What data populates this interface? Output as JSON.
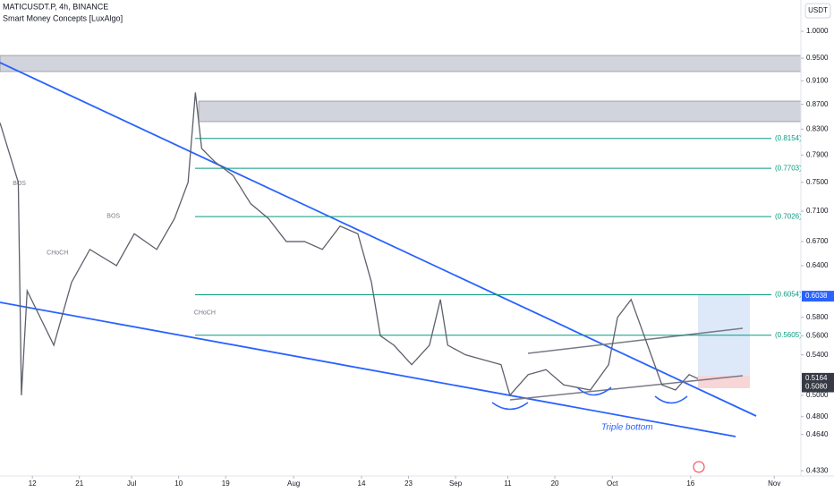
{
  "chart_data": {
    "type": "line",
    "title": "MATICUSDT.P, 4h, BINANCE",
    "subtitle": "Smart Money Concepts [LuxAlgo]",
    "currency": "USDT",
    "log_scale": true,
    "color": "#5d606b",
    "x": [
      -6.2,
      -2.7,
      -2.1,
      -1.0,
      4.1,
      7.5,
      11.0,
      16.1,
      19.5,
      23.8,
      27.2,
      29.8,
      31.2,
      32.4,
      34.9,
      38.4,
      41.8,
      45.2,
      48.6,
      52.1,
      55.5,
      58.9,
      62.3,
      64.9,
      66.6,
      69.2,
      72.6,
      76.0,
      78.1,
      79.5,
      82.9,
      86.3,
      89.7,
      91.4,
      94.9,
      98.3,
      101.7,
      106.8,
      110.3,
      112.0,
      114.6,
      117.1,
      120.5,
      123.1,
      125.7,
      127.4
    ],
    "values": [
      0.84,
      0.75,
      0.5,
      0.61,
      0.55,
      0.62,
      0.66,
      0.64,
      0.68,
      0.66,
      0.7,
      0.75,
      0.89,
      0.8,
      0.78,
      0.76,
      0.72,
      0.7,
      0.67,
      0.67,
      0.66,
      0.69,
      0.68,
      0.62,
      0.56,
      0.55,
      0.53,
      0.55,
      0.6,
      0.55,
      0.54,
      0.535,
      0.53,
      0.5,
      0.52,
      0.525,
      0.51,
      0.505,
      0.53,
      0.58,
      0.6,
      0.56,
      0.51,
      0.505,
      0.52,
      0.516
    ],
    "xlim": [
      -6.2,
      147.1
    ],
    "xticks": [
      {
        "value": 0,
        "label": "12"
      },
      {
        "value": 9,
        "label": "21"
      },
      {
        "value": 19,
        "label": "Jul"
      },
      {
        "value": 28,
        "label": "10"
      },
      {
        "value": 37,
        "label": "19"
      },
      {
        "value": 50,
        "label": "Aug"
      },
      {
        "value": 63,
        "label": "14"
      },
      {
        "value": 72,
        "label": "23"
      },
      {
        "value": 81,
        "label": "Sep"
      },
      {
        "value": 91,
        "label": "11"
      },
      {
        "value": 100,
        "label": "20"
      },
      {
        "value": 111,
        "label": "Oct"
      },
      {
        "value": 126,
        "label": "16"
      },
      {
        "value": 142,
        "label": "Nov"
      }
    ],
    "ylim": [
      0.4288,
      1.0614
    ],
    "yticks": [
      {
        "value": 1,
        "label": "1.0000"
      },
      {
        "value": 0.95,
        "label": "0.9500"
      },
      {
        "value": 0.91,
        "label": "0.9100"
      },
      {
        "value": 0.87,
        "label": "0.8700"
      },
      {
        "value": 0.83,
        "label": "0.8300"
      },
      {
        "value": 0.79,
        "label": "0.7900"
      },
      {
        "value": 0.75,
        "label": "0.7500"
      },
      {
        "value": 0.71,
        "label": "0.7100"
      },
      {
        "value": 0.67,
        "label": "0.6700"
      },
      {
        "value": 0.64,
        "label": "0.6400"
      },
      {
        "value": 0.58,
        "label": "0.5800"
      },
      {
        "value": 0.56,
        "label": "0.5600"
      },
      {
        "value": 0.54,
        "label": "0.5400"
      },
      {
        "value": 0.5,
        "label": "0.5000"
      },
      {
        "value": 0.48,
        "label": "0.4800"
      },
      {
        "value": 0.464,
        "label": "0.4640"
      },
      {
        "value": 0.433,
        "label": "0.4330"
      }
    ],
    "price_tags": [
      {
        "value": 0.6038,
        "color": "#2962ff"
      },
      {
        "value": 0.5164,
        "color": "#363a45"
      },
      {
        "value": 0.508,
        "label": "0.5080",
        "color": "#363a45"
      }
    ],
    "fib_levels": [
      {
        "value": 0.8154,
        "label": "(0.8154)"
      },
      {
        "value": 0.7703,
        "label": "(0.7703)"
      },
      {
        "value": 0.7026,
        "label": "(0.7026)"
      },
      {
        "value": 0.6054,
        "label": "(0.6054)"
      },
      {
        "value": 0.5605,
        "label": "(0.5605)"
      }
    ],
    "annotation": "Triple bottom",
    "structure_labels": [
      {
        "text": "BOS",
        "x": -2.5,
        "y": 0.748
      },
      {
        "text": "CHoCH",
        "x": 4.8,
        "y": 0.656
      },
      {
        "text": "BOS",
        "x": 15.5,
        "y": 0.703
      },
      {
        "text": "CHoCH",
        "x": 33,
        "y": 0.585
      }
    ]
  }
}
